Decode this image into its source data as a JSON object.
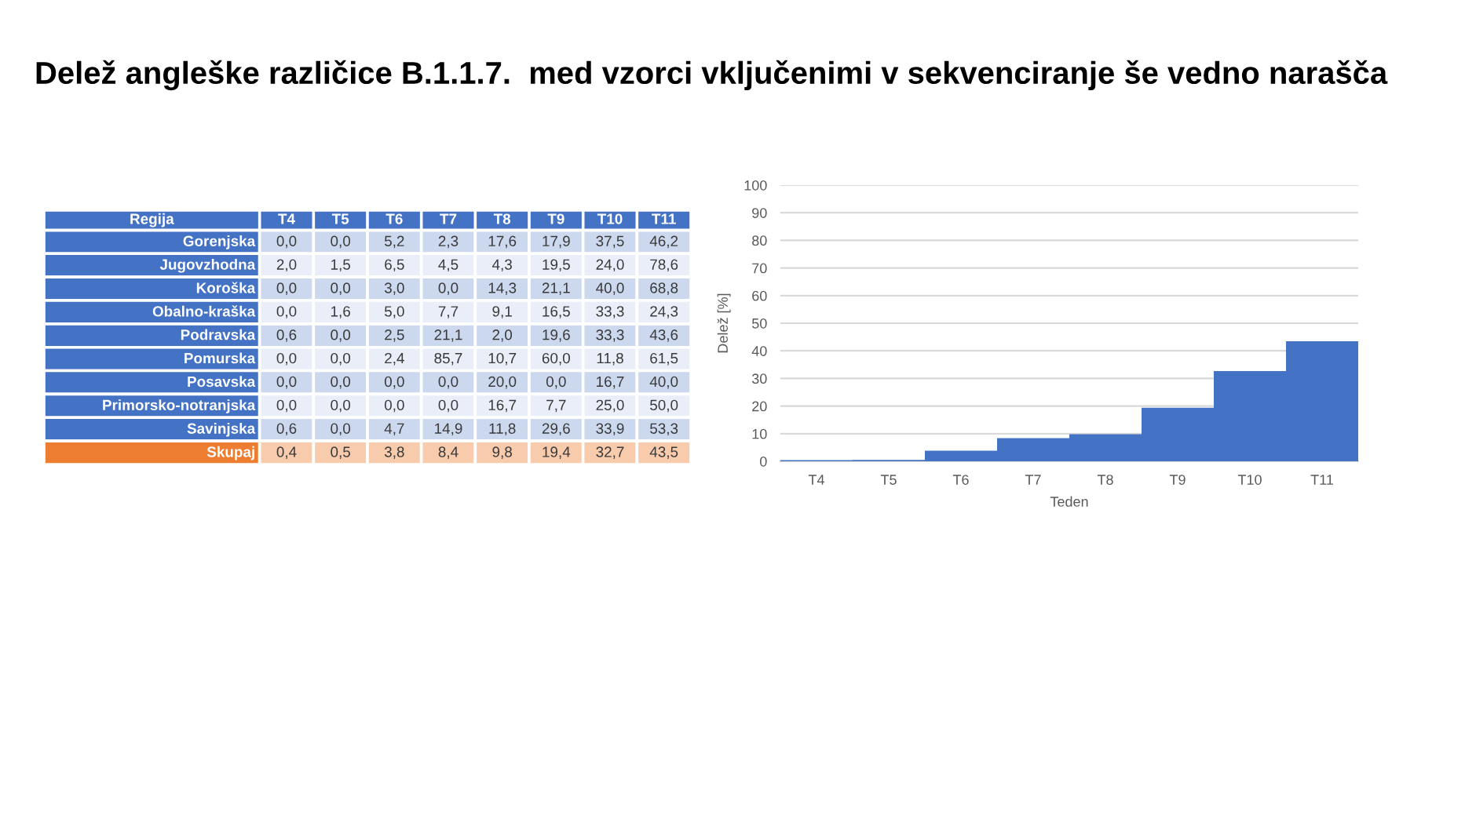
{
  "chart_data": [
    {
      "type": "other",
      "title": "Delež angleške različice B.1.1.7.  med vzorci vključenimi v sekvenciranje še vedno narašča",
      "ylabel": "Regija",
      "categories": [
        "T4",
        "T5",
        "T6",
        "T7",
        "T8",
        "T9",
        "T10",
        "T11"
      ],
      "y_categories": [
        "Gorenjska",
        "Jugovzhodna",
        "Koroška",
        "Obalno-kraška",
        "Podravska",
        "Pomurska",
        "Posavska",
        "Primorsko-notranjska",
        "Savinjska",
        "Skupaj"
      ],
      "cell_labels": [
        [
          "0,0",
          "0,0",
          "5,2",
          "2,3",
          "17,6",
          "17,9",
          "37,5",
          "46,2"
        ],
        [
          "2,0",
          "1,5",
          "6,5",
          "4,5",
          "4,3",
          "19,5",
          "24,0",
          "78,6"
        ],
        [
          "0,0",
          "0,0",
          "3,0",
          "0,0",
          "14,3",
          "21,1",
          "40,0",
          "68,8"
        ],
        [
          "0,0",
          "1,6",
          "5,0",
          "7,7",
          "9,1",
          "16,5",
          "33,3",
          "24,3"
        ],
        [
          "0,6",
          "0,0",
          "2,5",
          "21,1",
          "2,0",
          "19,6",
          "33,3",
          "43,6"
        ],
        [
          "0,0",
          "0,0",
          "2,4",
          "85,7",
          "10,7",
          "60,0",
          "11,8",
          "61,5"
        ],
        [
          "0,0",
          "0,0",
          "0,0",
          "0,0",
          "20,0",
          "0,0",
          "16,7",
          "40,0"
        ],
        [
          "0,0",
          "0,0",
          "0,0",
          "0,0",
          "16,7",
          "7,7",
          "25,0",
          "50,0"
        ],
        [
          "0,6",
          "0,0",
          "4,7",
          "14,9",
          "11,8",
          "29,6",
          "33,9",
          "53,3"
        ],
        [
          "0,4",
          "0,5",
          "3,8",
          "8,4",
          "9,8",
          "19,4",
          "32,7",
          "43,5"
        ]
      ],
      "colors": [
        "#4472c4",
        "#4472c4",
        "#4472c4",
        "#4472c4",
        "#4472c4",
        "#4472c4",
        "#4472c4",
        "#4472c4",
        "#4472c4",
        "#ed7d31"
      ]
    },
    {
      "type": "bar",
      "xlabel": "Teden",
      "ylabel": "Delež [%]",
      "categories": [
        "T4",
        "T5",
        "T6",
        "T7",
        "T8",
        "T9",
        "T10",
        "T11"
      ],
      "values": [
        0.4,
        0.5,
        3.8,
        8.4,
        9.8,
        19.4,
        32.7,
        43.5
      ],
      "color": "#4472c4",
      "ylim": [
        0,
        100
      ],
      "yticks": [
        0,
        10,
        20,
        30,
        40,
        50,
        60,
        70,
        80,
        90,
        100
      ],
      "grid": "y"
    }
  ]
}
